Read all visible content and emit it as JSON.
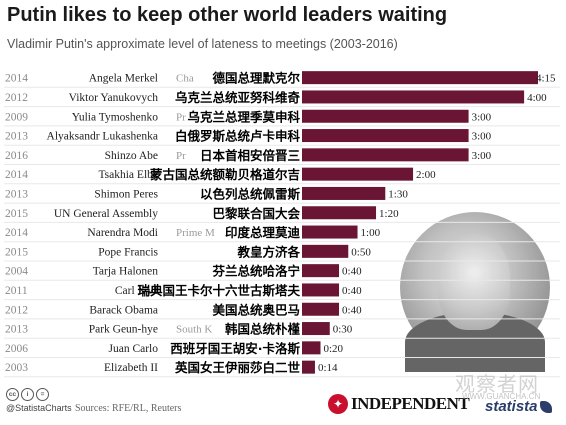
{
  "title": "Putin likes to keep other world leaders waiting",
  "subtitle": "Vladimir Putin's approximate level of lateness to meetings (2003-2016)",
  "colors": {
    "bar": "#6b1535",
    "year": "#8a8a8a",
    "grid": "#e8e8e8"
  },
  "chart_data": {
    "type": "bar",
    "orientation": "horizontal",
    "unit": "hours",
    "xlim": [
      0,
      4.25
    ],
    "rows": [
      {
        "year": "2014",
        "leader": "Angela Merkel",
        "overlay_en": "Cha",
        "overlay_zh": "德国总理默克尔",
        "value": 4.25,
        "label": "4:15"
      },
      {
        "year": "2012",
        "leader": "Viktor Yanukovych",
        "overlay_en": "",
        "overlay_zh": "乌克兰总统亚努科维奇",
        "value": 4.0,
        "label": "4:00"
      },
      {
        "year": "2009",
        "leader": "Yulia Tymoshenko",
        "overlay_en": "Pr",
        "overlay_zh": "乌克兰总理季莫申科",
        "value": 3.0,
        "label": "3:00"
      },
      {
        "year": "2013",
        "leader": "Alyaksandr Lukashenka",
        "overlay_en": "",
        "overlay_zh": "白俄罗斯总统卢卡申科",
        "value": 3.0,
        "label": "3:00"
      },
      {
        "year": "2016",
        "leader": "Shinzo Abe",
        "overlay_en": "Pr",
        "overlay_zh": "日本首相安倍晋三",
        "value": 3.0,
        "label": "3:00"
      },
      {
        "year": "2014",
        "leader": "Tsakhia Elbe",
        "overlay_en": "",
        "overlay_zh": "蒙古国总统额勒贝格道尔吉",
        "value": 2.0,
        "label": "2:00"
      },
      {
        "year": "2013",
        "leader": "Shimon Peres",
        "overlay_en": "",
        "overlay_zh": "以色列总统佩雷斯",
        "value": 1.5,
        "label": "1:30"
      },
      {
        "year": "2015",
        "leader": "UN General Assembly",
        "overlay_en": "",
        "overlay_zh": "巴黎联合国大会",
        "value": 1.3333,
        "label": "1:20"
      },
      {
        "year": "2014",
        "leader": "Narendra Modi",
        "overlay_en": "Prime M",
        "overlay_zh": "印度总理莫迪",
        "value": 1.0,
        "label": "1:00"
      },
      {
        "year": "2015",
        "leader": "Pope Francis",
        "overlay_en": "",
        "overlay_zh": "教皇方济各",
        "value": 0.8333,
        "label": "0:50"
      },
      {
        "year": "2004",
        "leader": "Tarja Halonen",
        "overlay_en": "",
        "overlay_zh": "芬兰总统哈洛宁",
        "value": 0.6667,
        "label": "0:40"
      },
      {
        "year": "2011",
        "leader": "Carl XVI",
        "overlay_en": "",
        "overlay_zh": "瑞典国王卡尔十六世古斯塔夫",
        "value": 0.6667,
        "label": "0:40"
      },
      {
        "year": "2012",
        "leader": "Barack Obama",
        "overlay_en": "",
        "overlay_zh": "美国总统奥巴马",
        "value": 0.6667,
        "label": "0:40"
      },
      {
        "year": "2013",
        "leader": "Park Geun-hye",
        "overlay_en": "South K",
        "overlay_zh": "韩国总统朴槿",
        "value": 0.5,
        "label": "0:30"
      },
      {
        "year": "2006",
        "leader": "Juan Carlo",
        "overlay_en": "",
        "overlay_zh": "西班牙国王胡安·卡洛斯",
        "value": 0.3333,
        "label": "0:20"
      },
      {
        "year": "2003",
        "leader": "Elizabeth II",
        "overlay_en": "",
        "overlay_zh": "英国女王伊丽莎白二世",
        "value": 0.2333,
        "label": "0:14"
      }
    ]
  },
  "footer": {
    "handle": "@StatistaCharts",
    "sources": "Sources: RFE/RL, Reuters",
    "publisher": "INDEPENDENT",
    "brand": "statista",
    "watermark": "观察者网",
    "watermark_url": "WWW.GUANCHA.CN",
    "cc_icons": [
      "cc",
      "by",
      "nd"
    ]
  }
}
